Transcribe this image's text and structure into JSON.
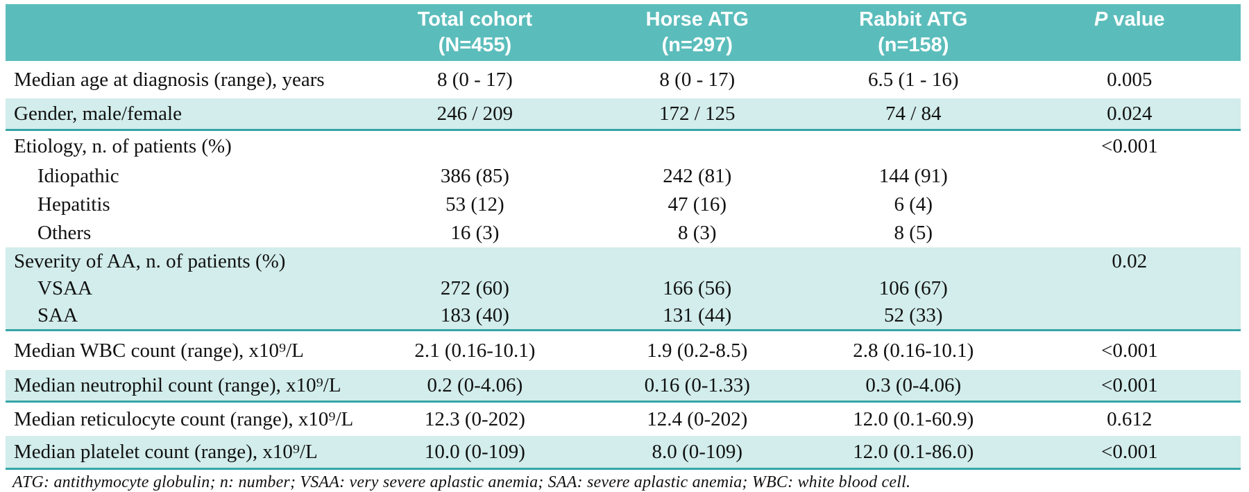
{
  "table": {
    "colors": {
      "header_bg": "#5bbdbb",
      "band_bg": "#d2edeb",
      "rule": "#35a5a6"
    },
    "columns": [
      {
        "line1": "Total cohort",
        "line2": "(N=455)"
      },
      {
        "line1": "Horse ATG",
        "line2": "(n=297)"
      },
      {
        "line1": "Rabbit ATG",
        "line2": "(n=158)"
      },
      {
        "line1_italic": "P",
        "line1_rest": " value",
        "line2": ""
      }
    ],
    "rows": [
      {
        "label": "Median age at diagnosis (range), years",
        "total": "8 (0 - 17)",
        "horse": "8 (0 - 17)",
        "rabbit": "6.5 (1 - 16)",
        "p": "0.005"
      },
      {
        "label": "Gender, male/female",
        "total": "246 / 209",
        "horse": "172 / 125",
        "rabbit": "74 / 84",
        "p": "0.024"
      },
      {
        "label": "Etiology, n. of patients (%)",
        "total": "",
        "horse": "",
        "rabbit": "",
        "p": "<0.001"
      },
      {
        "label": "Idiopathic",
        "total": "386 (85)",
        "horse": "242 (81)",
        "rabbit": "144 (91)",
        "p": ""
      },
      {
        "label": "Hepatitis",
        "total": "53 (12)",
        "horse": "47 (16)",
        "rabbit": "6 (4)",
        "p": ""
      },
      {
        "label": "Others",
        "total": "16 (3)",
        "horse": "8 (3)",
        "rabbit": "8 (5)",
        "p": ""
      },
      {
        "label": "Severity of AA, n. of patients (%)",
        "total": "",
        "horse": "",
        "rabbit": "",
        "p": "0.02"
      },
      {
        "label": "VSAA",
        "total": "272 (60)",
        "horse": "166 (56)",
        "rabbit": "106 (67)",
        "p": ""
      },
      {
        "label": "SAA",
        "total": "183 (40)",
        "horse": "131 (44)",
        "rabbit": "52 (33)",
        "p": ""
      },
      {
        "label": "Median WBC count (range), x10⁹/L",
        "total": "2.1 (0.16-10.1)",
        "horse": "1.9 (0.2-8.5)",
        "rabbit": "2.8 (0.16-10.1)",
        "p": "<0.001"
      },
      {
        "label": "Median neutrophil count (range), x10⁹/L",
        "total": "0.2 (0-4.06)",
        "horse": "0.16 (0-1.33)",
        "rabbit": "0.3 (0-4.06)",
        "p": "<0.001"
      },
      {
        "label": "Median reticulocyte count (range), x10⁹/L",
        "total": "12.3 (0-202)",
        "horse": "12.4 (0-202)",
        "rabbit": "12.0 (0.1-60.9)",
        "p": "0.612"
      },
      {
        "label": "Median platelet count (range), x10⁹/L",
        "total": "10.0 (0-109)",
        "horse": "8.0 (0-109)",
        "rabbit": "12.0 (0.1-86.0)",
        "p": "<0.001"
      }
    ],
    "footnote": "ATG: antithymocyte globulin; n: number; VSAA: very severe aplastic anemia; SAA: severe aplastic anemia; WBC: white blood cell."
  }
}
